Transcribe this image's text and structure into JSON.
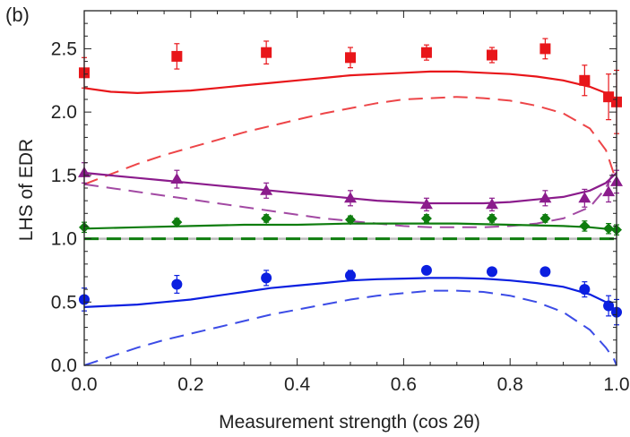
{
  "chart_data": {
    "type": "scatter",
    "panel_label": "(b)",
    "xlabel": "Measurement strength (cos 2θ)",
    "ylabel": "LHS of EDR",
    "xlim": [
      0.0,
      1.0
    ],
    "ylim": [
      0.0,
      2.8
    ],
    "xticks": [
      "0.0",
      "0.2",
      "0.4",
      "0.6",
      "0.8",
      "1.0"
    ],
    "yticks": [
      "0.0",
      "0.5",
      "1.0",
      "1.5",
      "2.0",
      "2.5"
    ],
    "reference_lines": [
      {
        "y": 1.0,
        "color": "#bbbbbb",
        "style": "solid"
      }
    ],
    "x": [
      0.0,
      0.174,
      0.342,
      0.5,
      0.643,
      0.766,
      0.866,
      0.94,
      0.985,
      1.0
    ],
    "series": [
      {
        "color": "#e8161a",
        "marker": "square",
        "points_y": [
          2.31,
          2.44,
          2.47,
          2.43,
          2.47,
          2.45,
          2.5,
          2.25,
          2.12,
          2.08
        ],
        "errors": [
          0.12,
          0.1,
          0.09,
          0.08,
          0.06,
          0.06,
          0.08,
          0.12,
          0.18,
          0.25
        ],
        "solid_curve": {
          "x": [
            0.0,
            0.05,
            0.1,
            0.15,
            0.2,
            0.25,
            0.3,
            0.35,
            0.4,
            0.45,
            0.5,
            0.55,
            0.6,
            0.65,
            0.7,
            0.75,
            0.8,
            0.85,
            0.9,
            0.95,
            0.98,
            1.0
          ],
          "y": [
            2.19,
            2.16,
            2.15,
            2.16,
            2.17,
            2.19,
            2.21,
            2.23,
            2.25,
            2.27,
            2.29,
            2.3,
            2.31,
            2.32,
            2.32,
            2.31,
            2.3,
            2.28,
            2.25,
            2.2,
            2.15,
            2.1
          ]
        },
        "dashed_curve": {
          "x": [
            0.0,
            0.05,
            0.1,
            0.15,
            0.2,
            0.25,
            0.3,
            0.35,
            0.4,
            0.45,
            0.5,
            0.55,
            0.6,
            0.65,
            0.7,
            0.75,
            0.8,
            0.85,
            0.9,
            0.95,
            0.98,
            1.0
          ],
          "y": [
            1.43,
            1.51,
            1.59,
            1.66,
            1.72,
            1.78,
            1.84,
            1.89,
            1.94,
            1.99,
            2.03,
            2.07,
            2.1,
            2.11,
            2.12,
            2.11,
            2.09,
            2.05,
            1.99,
            1.87,
            1.7,
            1.45
          ]
        }
      },
      {
        "color": "#8b1c8c",
        "marker": "triangle",
        "points_y": [
          1.52,
          1.47,
          1.38,
          1.32,
          1.27,
          1.27,
          1.32,
          1.32,
          1.37,
          1.45
        ],
        "errors": [
          0.08,
          0.07,
          0.06,
          0.06,
          0.05,
          0.05,
          0.06,
          0.07,
          0.08,
          0.09
        ],
        "solid_curve": {
          "x": [
            0.0,
            0.05,
            0.1,
            0.15,
            0.2,
            0.25,
            0.3,
            0.35,
            0.4,
            0.45,
            0.5,
            0.55,
            0.6,
            0.65,
            0.7,
            0.75,
            0.8,
            0.85,
            0.9,
            0.95,
            0.98,
            1.0
          ],
          "y": [
            1.52,
            1.5,
            1.48,
            1.46,
            1.44,
            1.42,
            1.4,
            1.38,
            1.36,
            1.34,
            1.32,
            1.3,
            1.29,
            1.28,
            1.28,
            1.28,
            1.29,
            1.31,
            1.33,
            1.38,
            1.44,
            1.52
          ]
        },
        "dashed_curve": {
          "x": [
            0.0,
            0.05,
            0.1,
            0.15,
            0.2,
            0.25,
            0.3,
            0.35,
            0.4,
            0.45,
            0.5,
            0.55,
            0.6,
            0.65,
            0.7,
            0.75,
            0.8,
            0.85,
            0.9,
            0.95,
            0.98,
            1.0
          ],
          "y": [
            1.43,
            1.4,
            1.37,
            1.34,
            1.31,
            1.28,
            1.25,
            1.22,
            1.19,
            1.16,
            1.14,
            1.12,
            1.1,
            1.09,
            1.09,
            1.09,
            1.1,
            1.12,
            1.16,
            1.25,
            1.4,
            1.58
          ]
        }
      },
      {
        "color": "#0f7d0f",
        "marker": "diamond",
        "points_y": [
          1.09,
          1.13,
          1.16,
          1.15,
          1.16,
          1.16,
          1.16,
          1.1,
          1.08,
          1.07
        ],
        "errors": [
          0.04,
          0.03,
          0.03,
          0.03,
          0.03,
          0.03,
          0.03,
          0.04,
          0.04,
          0.04
        ],
        "solid_curve": {
          "x": [
            0.0,
            0.1,
            0.2,
            0.3,
            0.4,
            0.5,
            0.6,
            0.7,
            0.8,
            0.9,
            0.95,
            1.0
          ],
          "y": [
            1.08,
            1.09,
            1.1,
            1.11,
            1.11,
            1.12,
            1.12,
            1.12,
            1.11,
            1.1,
            1.09,
            1.07
          ]
        },
        "dashed_curve": {
          "x": [
            0.0,
            0.2,
            0.4,
            0.6,
            0.8,
            1.0
          ],
          "y": [
            1.0,
            1.0,
            1.0,
            1.0,
            1.0,
            1.0
          ]
        }
      },
      {
        "color": "#0b1fe0",
        "marker": "circle",
        "points_y": [
          0.52,
          0.64,
          0.69,
          0.71,
          0.75,
          0.74,
          0.74,
          0.6,
          0.47,
          0.42
        ],
        "errors": [
          0.09,
          0.07,
          0.06,
          0.04,
          0.03,
          0.03,
          0.03,
          0.06,
          0.08,
          0.1
        ],
        "solid_curve": {
          "x": [
            0.0,
            0.05,
            0.1,
            0.15,
            0.2,
            0.25,
            0.3,
            0.35,
            0.4,
            0.45,
            0.5,
            0.55,
            0.6,
            0.65,
            0.7,
            0.75,
            0.8,
            0.85,
            0.9,
            0.95,
            0.98,
            1.0
          ],
          "y": [
            0.46,
            0.47,
            0.48,
            0.5,
            0.52,
            0.55,
            0.58,
            0.61,
            0.63,
            0.65,
            0.67,
            0.68,
            0.685,
            0.69,
            0.69,
            0.685,
            0.67,
            0.65,
            0.62,
            0.56,
            0.5,
            0.43
          ]
        },
        "dashed_curve": {
          "x": [
            0.0,
            0.05,
            0.1,
            0.15,
            0.2,
            0.25,
            0.3,
            0.35,
            0.4,
            0.45,
            0.5,
            0.55,
            0.6,
            0.65,
            0.7,
            0.75,
            0.8,
            0.85,
            0.9,
            0.95,
            0.98,
            0.995,
            1.0
          ],
          "y": [
            0.0,
            0.07,
            0.14,
            0.2,
            0.25,
            0.3,
            0.35,
            0.4,
            0.44,
            0.48,
            0.52,
            0.55,
            0.57,
            0.59,
            0.59,
            0.58,
            0.55,
            0.5,
            0.42,
            0.28,
            0.14,
            0.05,
            0.0
          ]
        }
      }
    ]
  }
}
